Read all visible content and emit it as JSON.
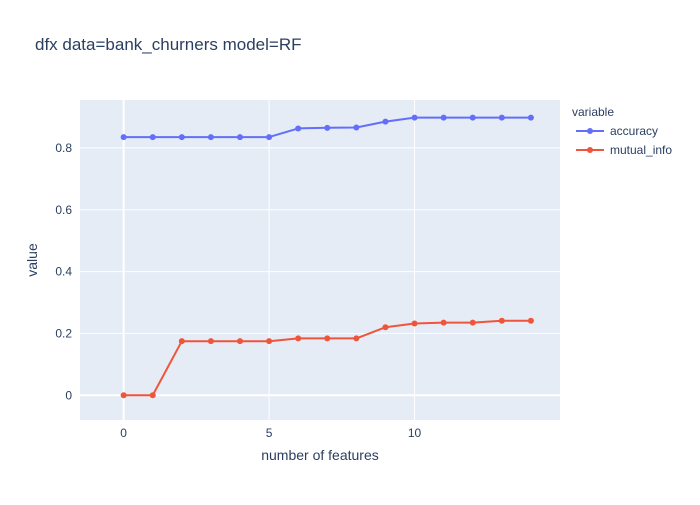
{
  "chart_data": {
    "type": "line",
    "title": "dfx data=bank_churners model=RF",
    "xlabel": "number of features",
    "ylabel": "value",
    "legend": {
      "title": "variable",
      "placement": "top-right, outside plot"
    },
    "x": [
      0,
      1,
      2,
      3,
      4,
      5,
      6,
      7,
      8,
      9,
      10,
      11,
      12,
      13,
      14
    ],
    "xlim": [
      -1.5,
      15
    ],
    "ylim": [
      -0.08,
      0.955
    ],
    "xticks": [
      0,
      5,
      10
    ],
    "xtick_labels": [
      "0",
      "5",
      "10"
    ],
    "yticks": [
      0,
      0.2,
      0.4,
      0.6,
      0.8
    ],
    "ytick_labels": [
      "0",
      "0.2",
      "0.4",
      "0.6",
      "0.8"
    ],
    "grid": true,
    "plot_background": "#e5ecf6",
    "series": [
      {
        "name": "accuracy",
        "color": "#636efa",
        "values": [
          0.835,
          0.835,
          0.835,
          0.835,
          0.835,
          0.835,
          0.863,
          0.865,
          0.866,
          0.885,
          0.898,
          0.898,
          0.898,
          0.898,
          0.898
        ]
      },
      {
        "name": "mutual_info",
        "color": "#ef553b",
        "values": [
          0.0,
          0.0,
          0.175,
          0.175,
          0.175,
          0.175,
          0.184,
          0.184,
          0.184,
          0.22,
          0.232,
          0.235,
          0.235,
          0.241,
          0.241
        ]
      }
    ]
  }
}
